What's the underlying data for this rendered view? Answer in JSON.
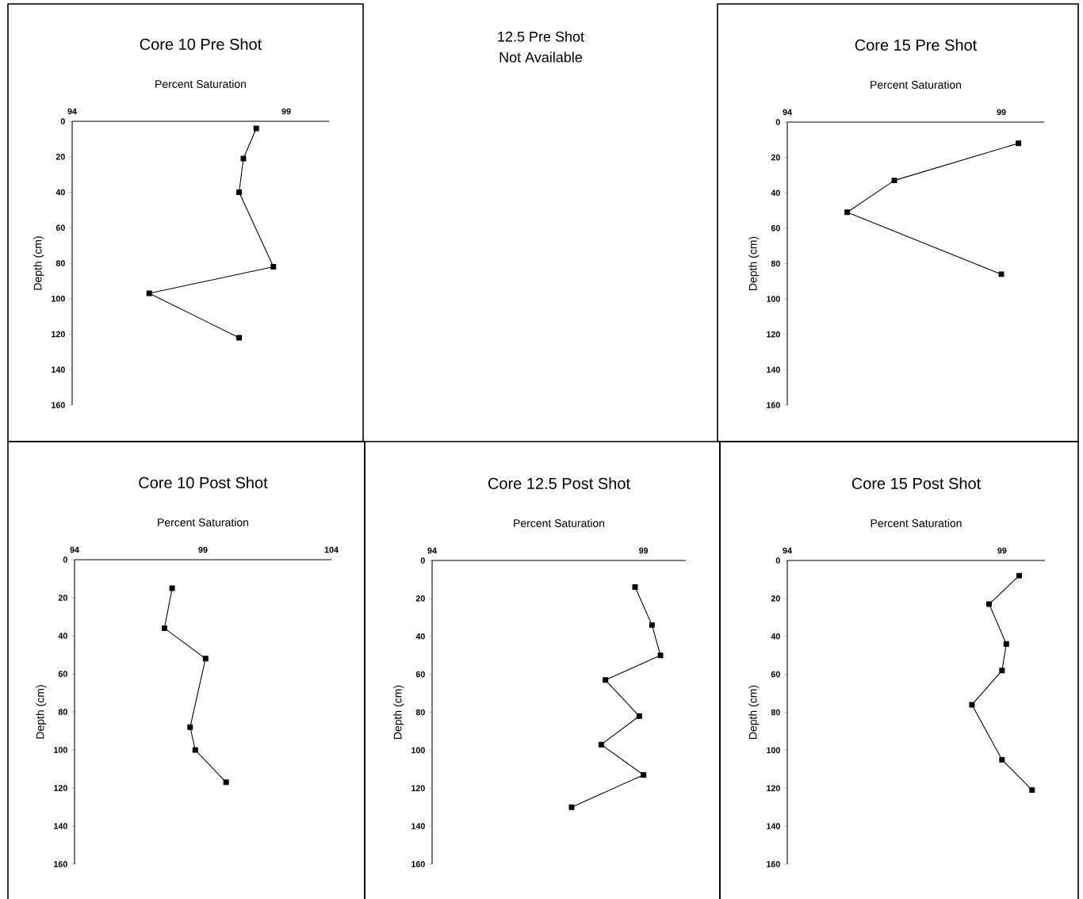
{
  "chart_data": [
    {
      "type": "line",
      "title": "Core 10 Pre Shot",
      "xlabel": "Percent Saturation",
      "ylabel": "Depth (cm)",
      "color": "#000000",
      "marker": "square",
      "x": [
        98.3,
        98.0,
        97.9,
        98.7,
        95.8,
        97.9
      ],
      "values": [
        4,
        21,
        40,
        82,
        97,
        122
      ],
      "xlim": [
        94,
        100
      ],
      "xticks": [
        94,
        99
      ],
      "ylim": [
        160,
        0
      ],
      "yticks": [
        0,
        20,
        40,
        60,
        80,
        100,
        120,
        140,
        160
      ]
    },
    {
      "type": "other",
      "title": "12.5 Pre Shot",
      "subtitle": "Not Available"
    },
    {
      "type": "line",
      "title": "Core 15 Pre Shot",
      "xlabel": "Percent Saturation",
      "ylabel": "Depth (cm)",
      "color": "#000000",
      "marker": "square",
      "x": [
        99.4,
        96.5,
        95.4,
        99.0
      ],
      "values": [
        12,
        33,
        51,
        86
      ],
      "xlim": [
        94,
        100
      ],
      "xticks": [
        94,
        99
      ],
      "ylim": [
        160,
        0
      ],
      "yticks": [
        0,
        20,
        40,
        60,
        80,
        100,
        120,
        140,
        160
      ]
    },
    {
      "type": "line",
      "title": "Core 10 Post Shot",
      "xlabel": "Percent Saturation",
      "ylabel": "Depth (cm)",
      "color": "#000000",
      "marker": "square",
      "x": [
        97.8,
        97.5,
        99.1,
        98.5,
        98.7,
        99.9
      ],
      "values": [
        15,
        36,
        52,
        88,
        100,
        117
      ],
      "xlim": [
        94,
        104
      ],
      "xticks": [
        94,
        99,
        104
      ],
      "ylim": [
        160,
        0
      ],
      "yticks": [
        0,
        20,
        40,
        60,
        80,
        100,
        120,
        140,
        160
      ]
    },
    {
      "type": "line",
      "title": "Core 12.5 Post Shot",
      "xlabel": "Percent Saturation",
      "ylabel": "Depth (cm)",
      "color": "#000000",
      "marker": "square",
      "x": [
        98.8,
        99.2,
        99.4,
        98.1,
        98.9,
        98.0,
        99.0,
        97.3
      ],
      "values": [
        14,
        34,
        50,
        63,
        82,
        97,
        113,
        130
      ],
      "xlim": [
        94,
        100
      ],
      "xticks": [
        94,
        99
      ],
      "ylim": [
        160,
        0
      ],
      "yticks": [
        0,
        20,
        40,
        60,
        80,
        100,
        120,
        140,
        160
      ]
    },
    {
      "type": "line",
      "title": "Core 15 Post Shot",
      "xlabel": "Percent Saturation",
      "ylabel": "Depth (cm)",
      "color": "#000000",
      "marker": "square",
      "x": [
        99.4,
        98.7,
        99.1,
        99.0,
        98.3,
        99.0,
        99.7
      ],
      "values": [
        8,
        23,
        44,
        58,
        76,
        105,
        121
      ],
      "xlim": [
        94,
        100
      ],
      "xticks": [
        94,
        99
      ],
      "ylim": [
        160,
        0
      ],
      "yticks": [
        0,
        20,
        40,
        60,
        80,
        100,
        120,
        140,
        160
      ]
    }
  ]
}
